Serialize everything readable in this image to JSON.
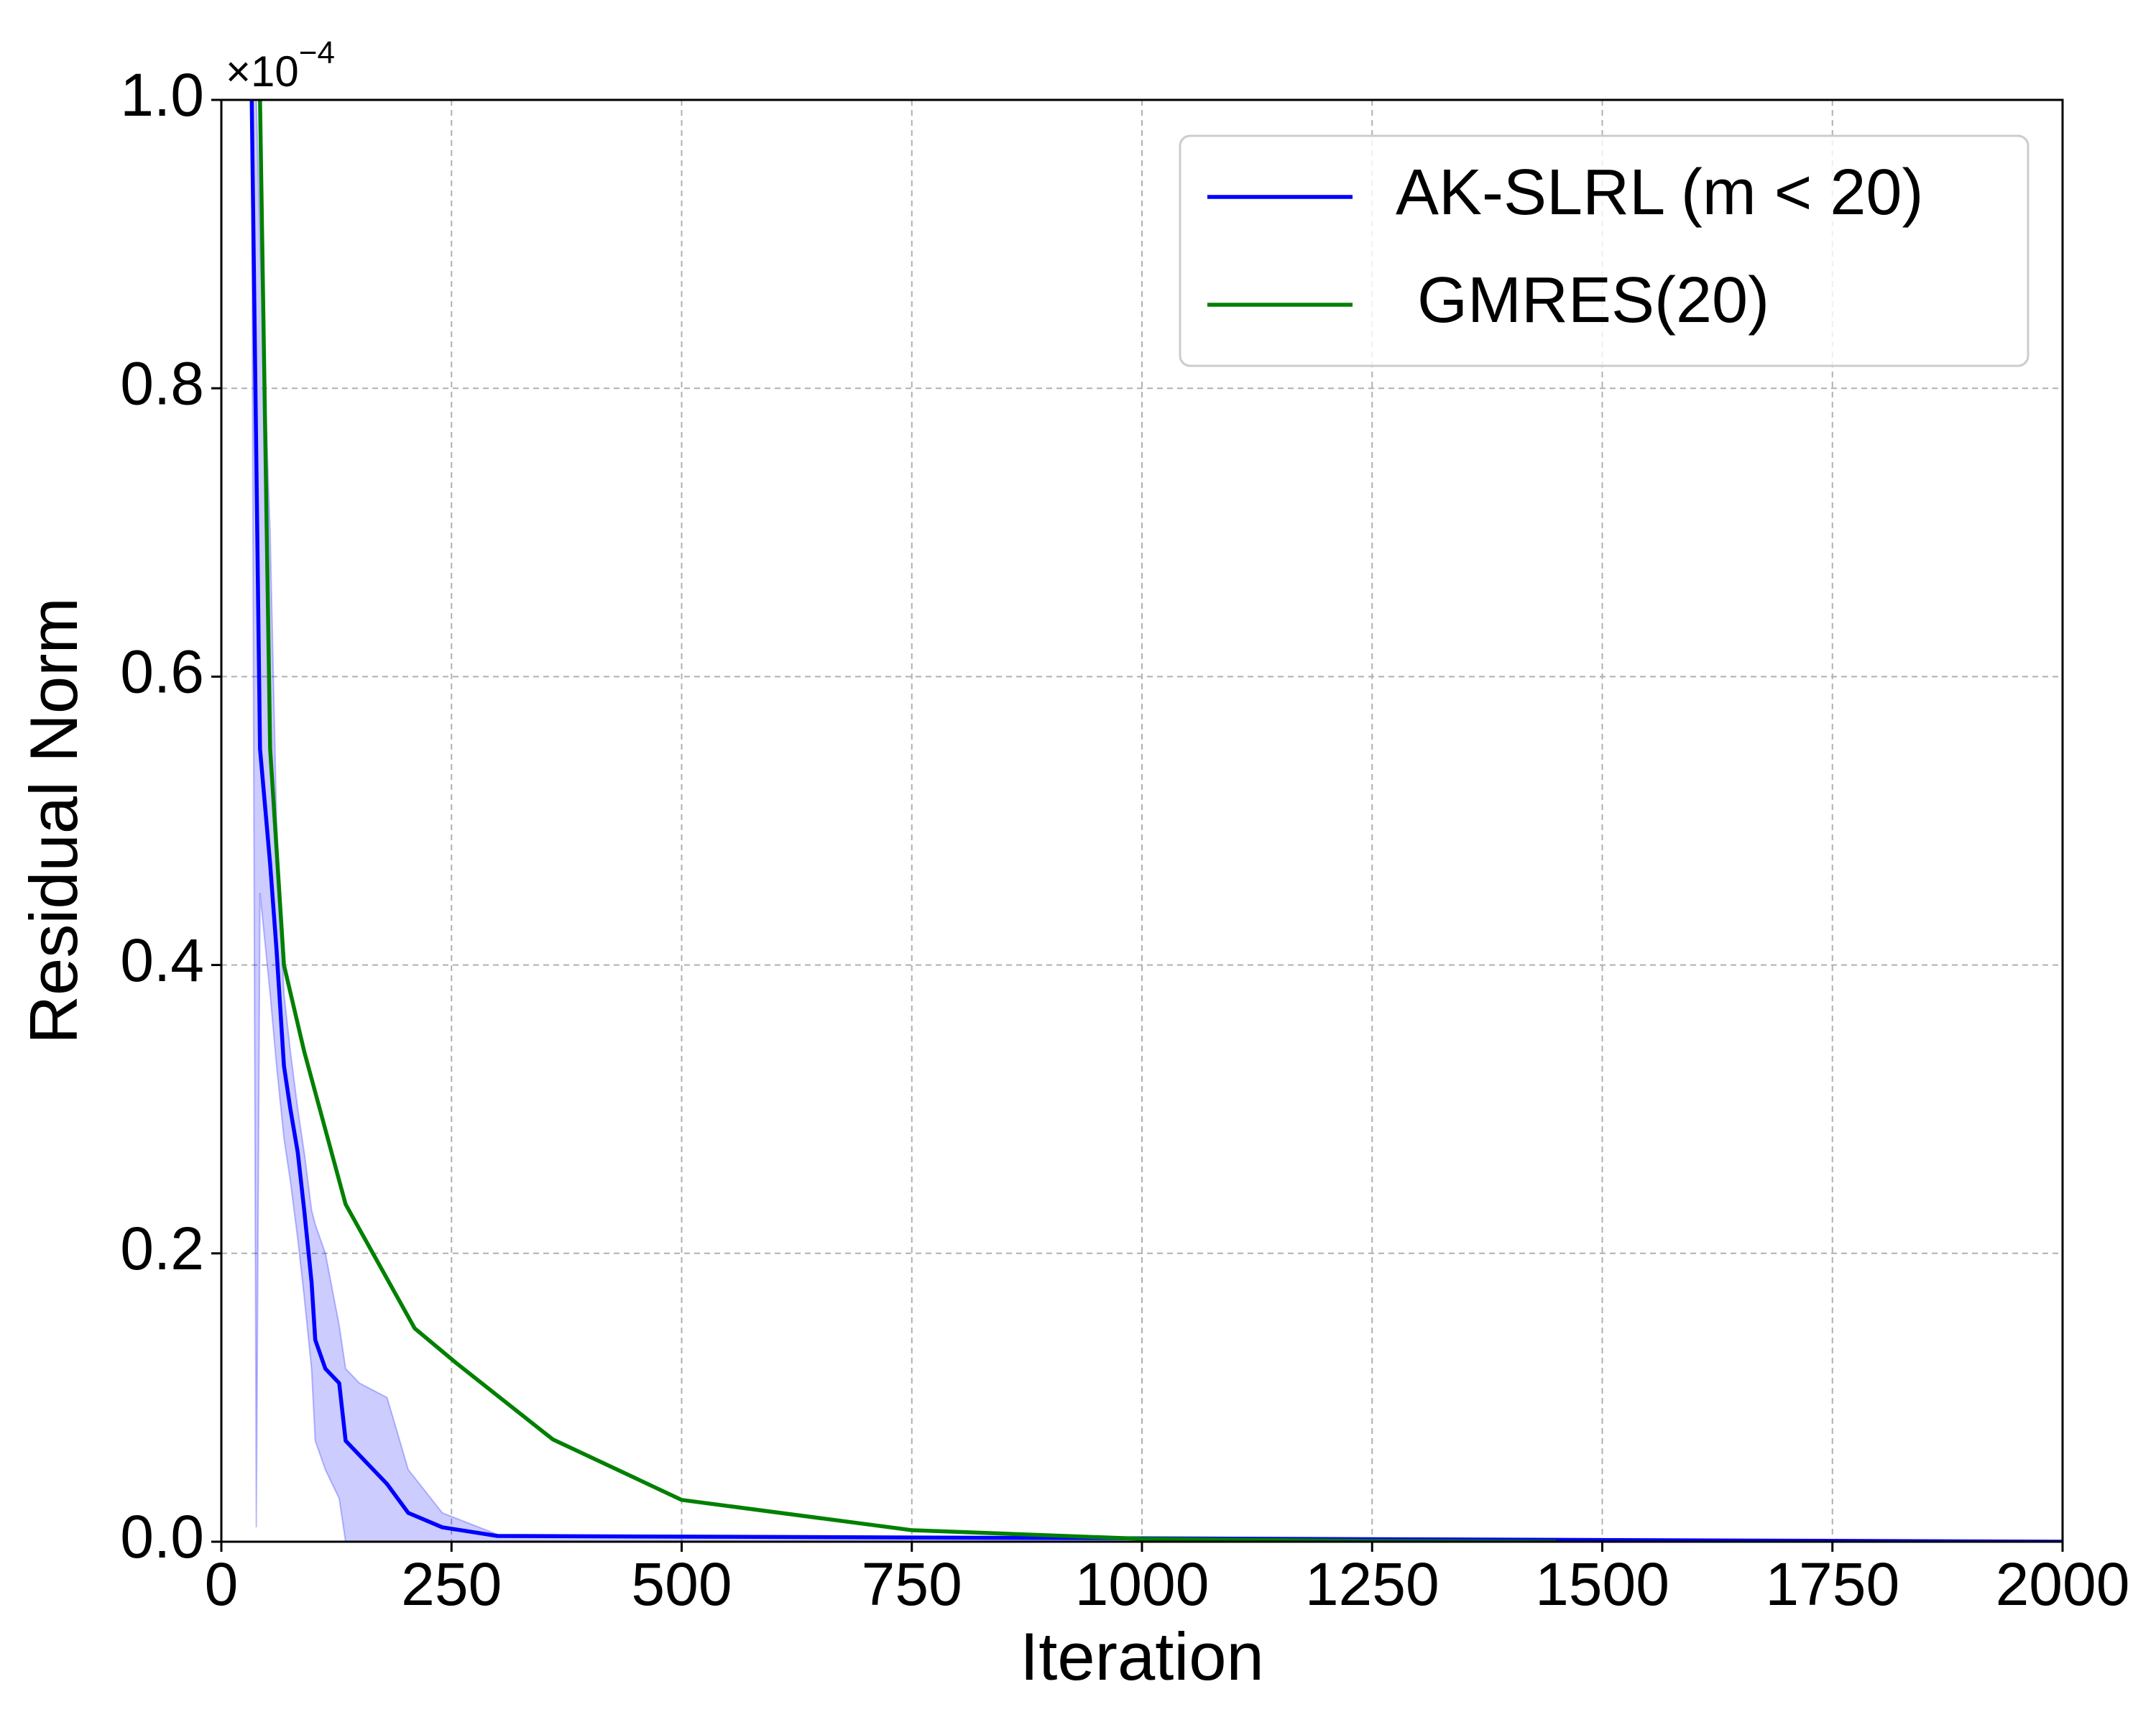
{
  "chart_data": {
    "type": "line",
    "x_label": "Iteration",
    "y_label": "Residual Norm",
    "y_offset_text": {
      "base": "×10",
      "exponent": "−4"
    },
    "xlim": [
      0,
      2000
    ],
    "xticks": [
      0,
      250,
      500,
      750,
      1000,
      1250,
      1500,
      1750,
      2000
    ],
    "ylim": [
      0,
      1
    ],
    "yticks": [
      {
        "value": 0,
        "label": "0.0"
      },
      0.2,
      0.4,
      0.6,
      0.8,
      {
        "value": 1,
        "label": "1.0"
      }
    ],
    "grid": true,
    "legend": "upper right",
    "series": [
      {
        "name": "AK-SLRL (m < 20)",
        "color": "#0000ff",
        "x": [
          33,
          38,
          42,
          53,
          60,
          68,
          75,
          83,
          90,
          98,
          102,
          113,
          128,
          135,
          150,
          180,
          203,
          240,
          300,
          2000
        ],
        "values": [
          1.0,
          0.75,
          0.55,
          0.47,
          0.41,
          0.33,
          0.3,
          0.27,
          0.23,
          0.18,
          0.14,
          0.12,
          0.11,
          0.07,
          0.06,
          0.04,
          0.02,
          0.01,
          0.004,
          0.0
        ],
        "band_upper": [
          1.0,
          1.0,
          0.9,
          0.7,
          0.5,
          0.38,
          0.34,
          0.3,
          0.27,
          0.23,
          0.22,
          0.2,
          0.15,
          0.12,
          0.11,
          0.1,
          0.05,
          0.02,
          0.005,
          0.0
        ],
        "band_lower": [
          0.95,
          0.01,
          0.45,
          0.38,
          0.33,
          0.28,
          0.25,
          0.21,
          0.17,
          0.12,
          0.07,
          0.05,
          0.03,
          0.0,
          0.0,
          0.0,
          0.0,
          0.0,
          0.0,
          0.0
        ]
      },
      {
        "name": "GMRES(20)",
        "color": "#008000",
        "x": [
          42,
          53,
          68,
          90,
          135,
          210,
          255,
          360,
          500,
          750,
          1000,
          1250,
          1450
        ],
        "values": [
          1.0,
          0.55,
          0.4,
          0.34,
          0.234,
          0.148,
          0.124,
          0.071,
          0.029,
          0.008,
          0.002,
          0.0005,
          0.0
        ]
      }
    ]
  }
}
